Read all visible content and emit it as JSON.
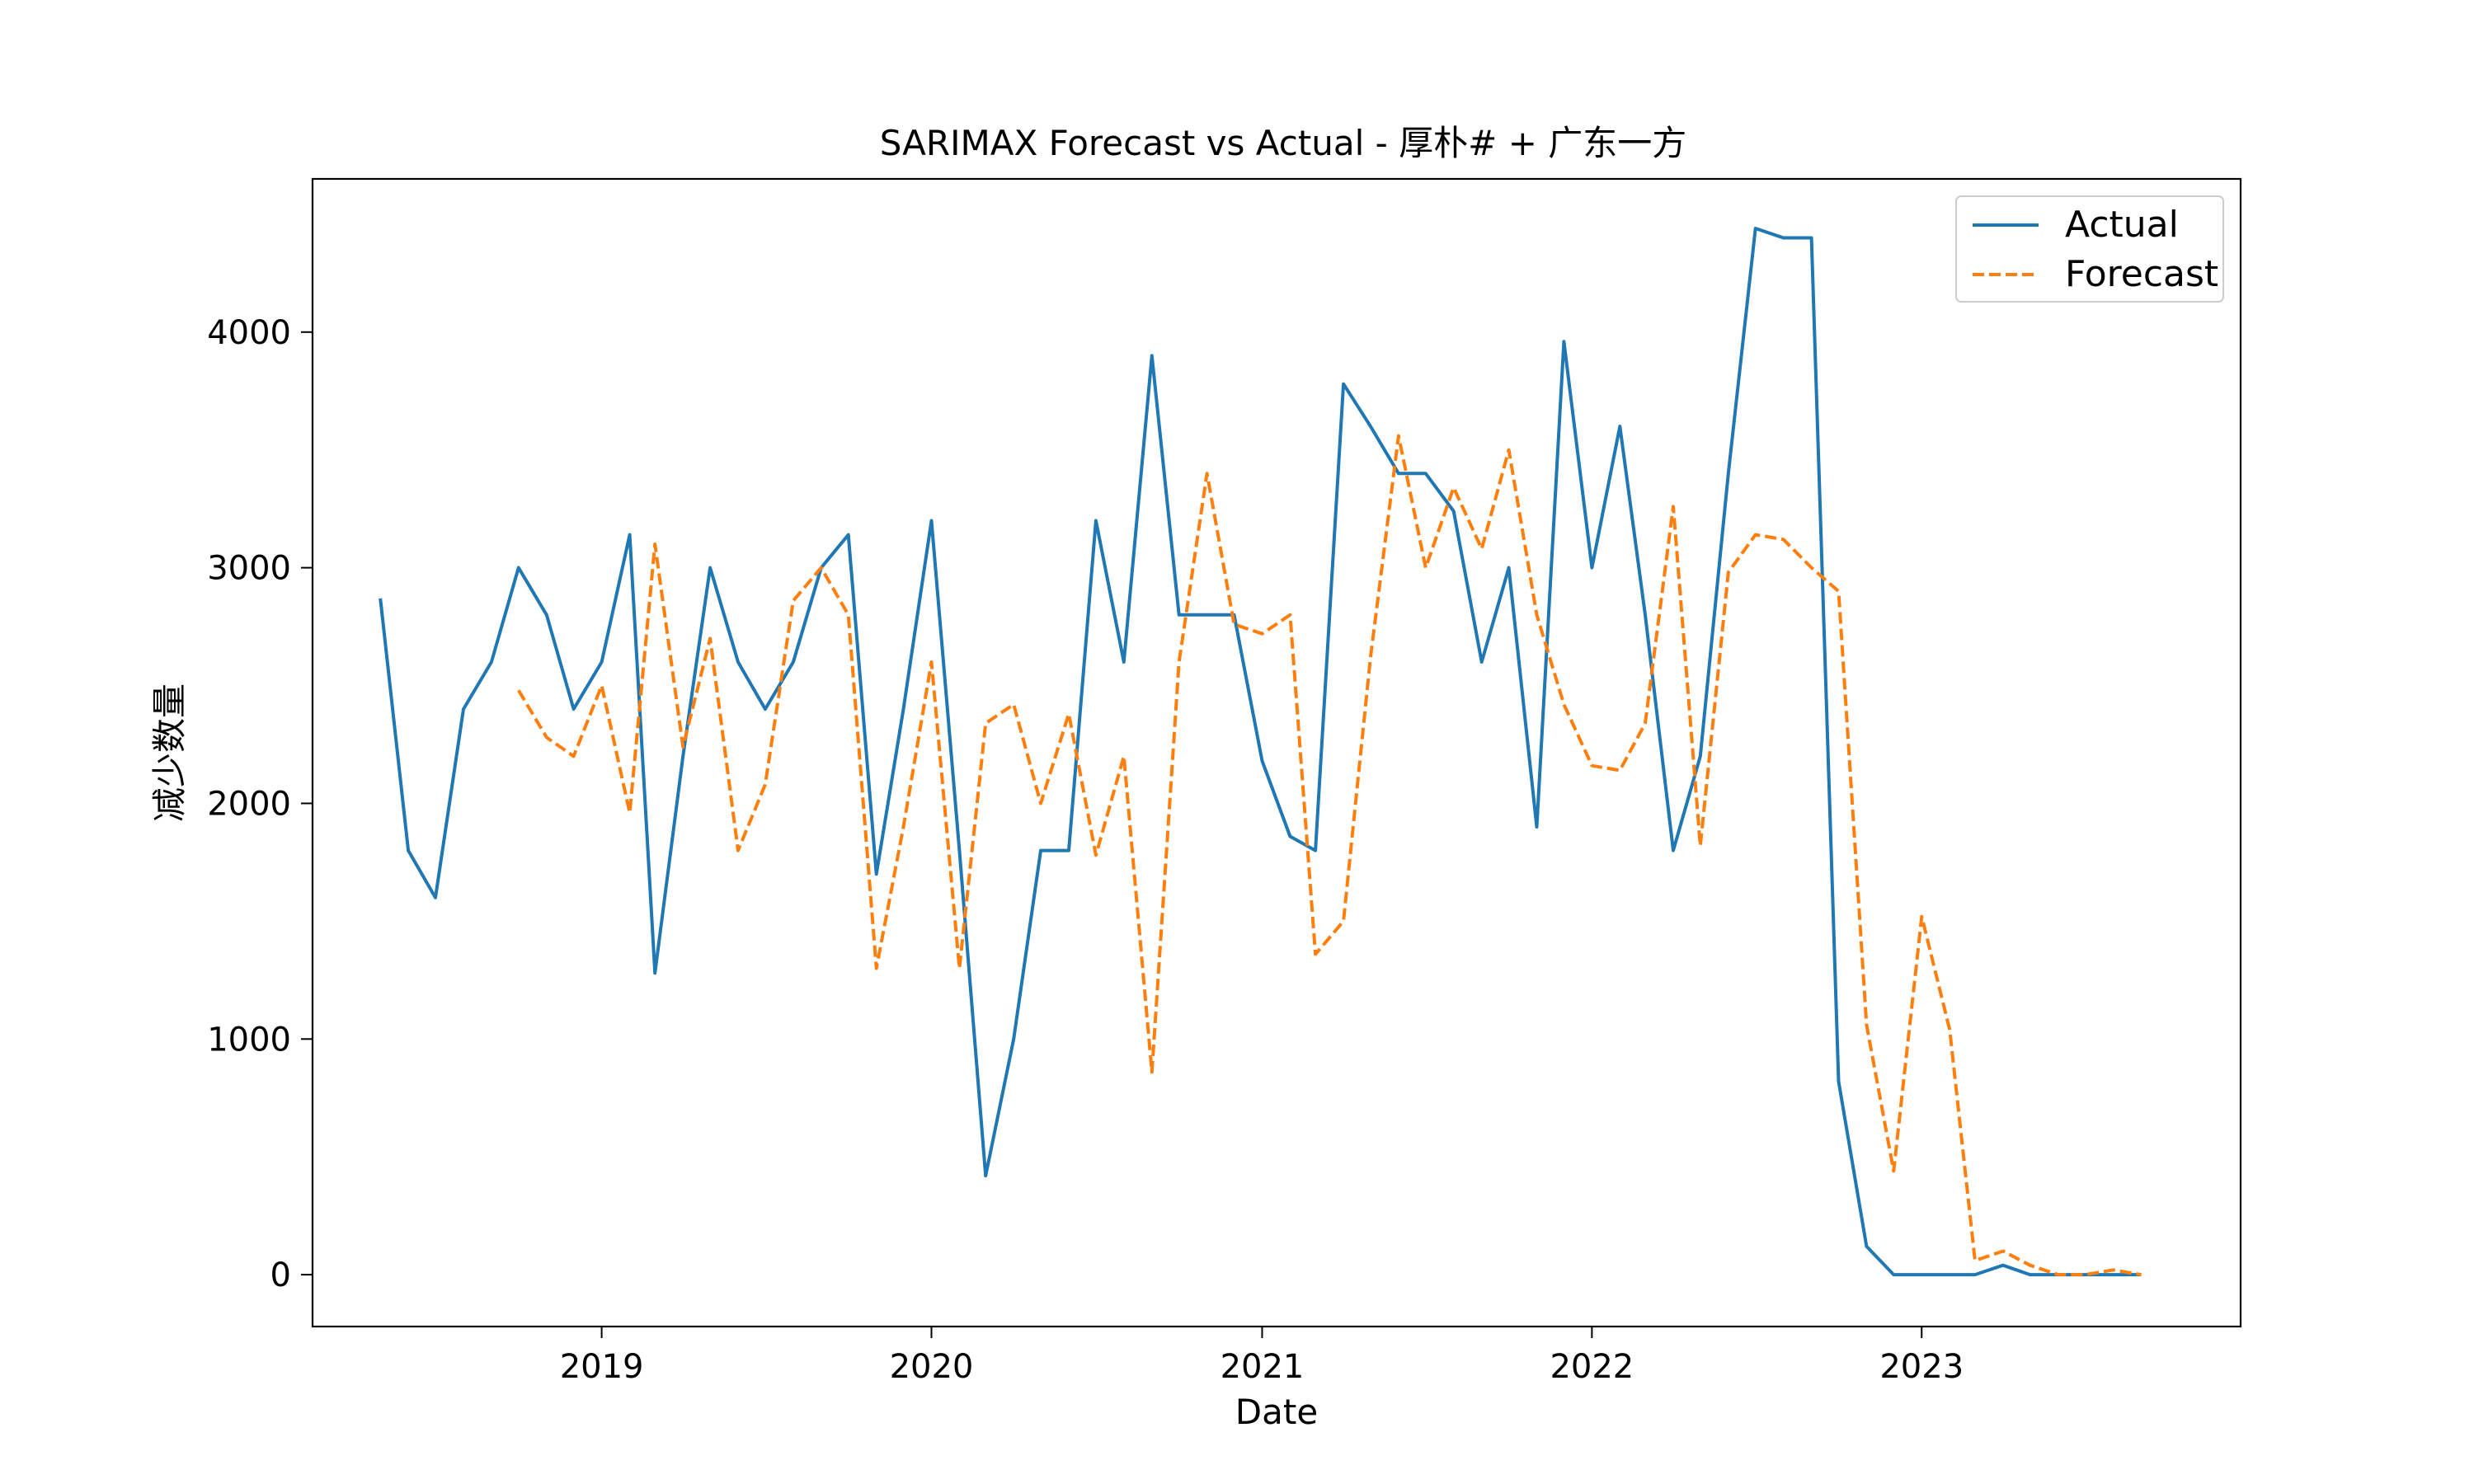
{
  "chart_data": {
    "type": "line",
    "title": "SARIMAX Forecast vs Actual - 厚朴# + 广东一方",
    "xlabel": "Date",
    "ylabel": "减少数量",
    "x_ticks": [
      "2019",
      "2020",
      "2021",
      "2022",
      "2023"
    ],
    "y_ticks": [
      "0",
      "1000",
      "2000",
      "3000",
      "4000"
    ],
    "xlim": [
      "2018-02-15",
      "2023-12-20"
    ],
    "ylim": [
      -220,
      4650
    ],
    "grid": false,
    "legend_position": "top-right",
    "colors": {
      "actual": "#1f77b4",
      "forecast": "#ff7f0e"
    },
    "series": [
      {
        "name": "Actual",
        "style": "solid",
        "x": [
          "2018-05",
          "2018-06",
          "2018-07",
          "2018-08",
          "2018-09",
          "2018-10",
          "2018-11",
          "2018-12",
          "2019-01",
          "2019-02",
          "2019-03",
          "2019-04",
          "2019-05",
          "2019-06",
          "2019-07",
          "2019-08",
          "2019-09",
          "2019-10",
          "2019-11",
          "2019-12",
          "2020-01",
          "2020-02",
          "2020-03",
          "2020-04",
          "2020-05",
          "2020-06",
          "2020-07",
          "2020-08",
          "2020-09",
          "2020-10",
          "2020-11",
          "2020-12",
          "2021-01",
          "2021-02",
          "2021-03",
          "2021-04",
          "2021-05",
          "2021-06",
          "2021-07",
          "2021-08",
          "2021-09",
          "2021-10",
          "2021-11",
          "2021-12",
          "2022-01",
          "2022-02",
          "2022-03",
          "2022-04",
          "2022-05",
          "2022-06",
          "2022-07",
          "2022-08",
          "2022-09",
          "2022-10",
          "2022-11",
          "2022-12",
          "2023-01",
          "2023-02",
          "2023-03",
          "2023-04",
          "2023-05",
          "2023-06",
          "2023-07",
          "2023-08",
          "2023-09"
        ],
        "values": [
          2870,
          1800,
          1600,
          2400,
          2600,
          3000,
          2800,
          2400,
          2600,
          3140,
          1280,
          2200,
          3000,
          2600,
          2400,
          2600,
          3000,
          3140,
          1700,
          2400,
          3200,
          1800,
          420,
          1000,
          1800,
          1800,
          3200,
          2600,
          3900,
          2800,
          2800,
          2800,
          2180,
          1860,
          1800,
          3780,
          3600,
          3400,
          3400,
          3240,
          2600,
          3000,
          1900,
          3960,
          3000,
          3600,
          2800,
          1800,
          2200,
          3400,
          4440,
          4400,
          4400,
          820,
          120,
          0,
          0,
          0,
          0,
          40,
          0,
          0,
          0,
          0,
          0
        ]
      },
      {
        "name": "Forecast",
        "style": "dashed",
        "x": [
          "2018-10",
          "2018-11",
          "2018-12",
          "2019-01",
          "2019-02",
          "2019-03",
          "2019-04",
          "2019-05",
          "2019-06",
          "2019-07",
          "2019-08",
          "2019-09",
          "2019-10",
          "2019-11",
          "2019-12",
          "2020-01",
          "2020-02",
          "2020-03",
          "2020-04",
          "2020-05",
          "2020-06",
          "2020-07",
          "2020-08",
          "2020-09",
          "2020-10",
          "2020-11",
          "2020-12",
          "2021-01",
          "2021-02",
          "2021-03",
          "2021-04",
          "2021-05",
          "2021-06",
          "2021-07",
          "2021-08",
          "2021-09",
          "2021-10",
          "2021-11",
          "2021-12",
          "2022-01",
          "2022-02",
          "2022-03",
          "2022-04",
          "2022-05",
          "2022-06",
          "2022-07",
          "2022-08",
          "2022-09",
          "2022-10",
          "2022-11",
          "2022-12",
          "2023-01",
          "2023-02",
          "2023-03",
          "2023-04",
          "2023-05",
          "2023-06",
          "2023-07",
          "2023-08",
          "2023-09"
        ],
        "values": [
          2480,
          2280,
          2200,
          2500,
          1960,
          3100,
          2240,
          2700,
          1800,
          2080,
          2860,
          3000,
          2800,
          1300,
          1900,
          2600,
          1300,
          2340,
          2420,
          2000,
          2380,
          1780,
          2200,
          860,
          2600,
          3400,
          2760,
          2720,
          2800,
          1360,
          1500,
          2620,
          3560,
          3000,
          3340,
          3080,
          3500,
          2800,
          2420,
          2160,
          2140,
          2340,
          3260,
          1820,
          2980,
          3140,
          3120,
          3000,
          2900,
          1060,
          440,
          1520,
          1040,
          60,
          100,
          40,
          0,
          0,
          20,
          0
        ]
      }
    ]
  }
}
